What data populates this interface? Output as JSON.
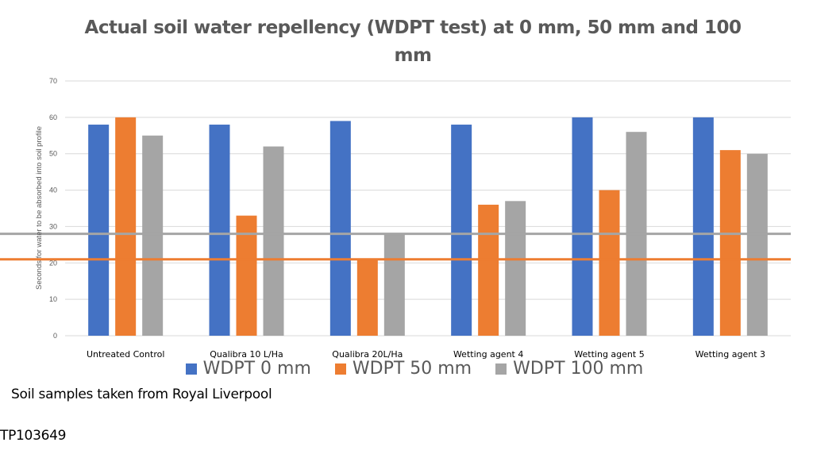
{
  "chart_data": {
    "type": "bar",
    "title": "Actual soil water repellency (WDPT test) at 0 mm, 50 mm and 100 mm",
    "title_lines": [
      "Actual soil water repellency (WDPT test) at 0 mm, 50 mm and 100",
      "mm"
    ],
    "xlabel": "",
    "ylabel": "Seconds for water to be absorbed into soil profile",
    "ylim": [
      0,
      70
    ],
    "yticks": [
      0,
      10,
      20,
      30,
      40,
      50,
      60,
      70
    ],
    "grid": true,
    "legend_position": "bottom",
    "categories": [
      "Untreated Control",
      "Qualibra 10 L/Ha",
      "Qualibra 20L/Ha",
      "Wetting agent 4",
      "Wetting agent 5",
      "Wetting agent 3"
    ],
    "series": [
      {
        "name": "WDPT 0 mm",
        "color": "#4472C4",
        "values": [
          58,
          58,
          59,
          58,
          60,
          60
        ]
      },
      {
        "name": "WDPT 50 mm",
        "color": "#ED7D31",
        "values": [
          60,
          33,
          21,
          36,
          40,
          51
        ]
      },
      {
        "name": "WDPT 100 mm",
        "color": "#A5A5A5",
        "values": [
          55,
          52,
          28,
          37,
          56,
          50
        ]
      }
    ],
    "reference_lines": [
      {
        "value": 28,
        "color": "#A5A5A5"
      },
      {
        "value": 21,
        "color": "#ED7D31"
      }
    ]
  },
  "notes": {
    "source": "Soil samples taken from Royal Liverpool",
    "code": "TP103649"
  }
}
